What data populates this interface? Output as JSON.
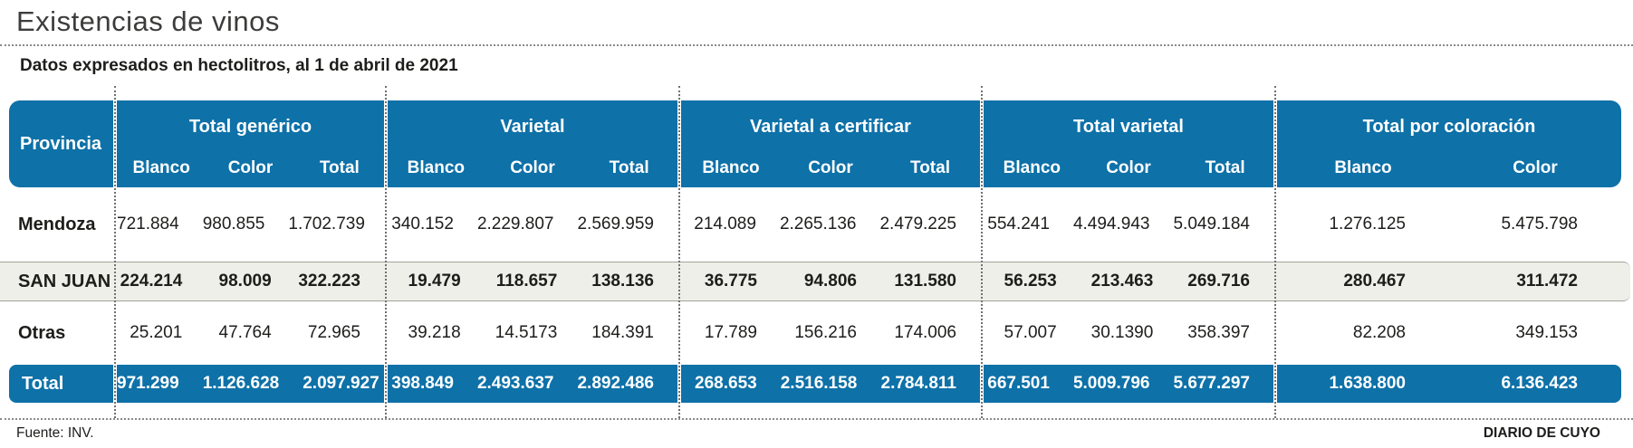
{
  "title": "Existencias de vinos",
  "subtitle": "Datos expresados en hectolitros, al 1 de abril de 2021",
  "footer": {
    "source": "Fuente: INV.",
    "credit": "DIARIO DE CUYO"
  },
  "colors": {
    "header_blue": "#0E71A8",
    "highlight_row_bg": "#EFEFE9",
    "title_gray": "#3C3C3B",
    "dotted_line": "#707070"
  },
  "chart_data": {
    "type": "table",
    "title": "Existencias de vinos",
    "subtitle": "Datos expresados en hectolitros, al 1 de abril de 2021",
    "row_header": "Provincia",
    "column_groups": [
      {
        "label": "Total genérico",
        "columns": [
          "Blanco",
          "Color",
          "Total"
        ]
      },
      {
        "label": "Varietal",
        "columns": [
          "Blanco",
          "Color",
          "Total"
        ]
      },
      {
        "label": "Varietal a certificar",
        "columns": [
          "Blanco",
          "Color",
          "Total"
        ]
      },
      {
        "label": "Total varietal",
        "columns": [
          "Blanco",
          "Color",
          "Total"
        ]
      },
      {
        "label": "Total por coloración",
        "columns": [
          "Blanco",
          "Color"
        ]
      }
    ],
    "rows": [
      {
        "name": "Mendoza",
        "values": [
          "721.884",
          "980.855",
          "1.702.739",
          "340.152",
          "2.229.807",
          "2.569.959",
          "214.089",
          "2.265.136",
          "2.479.225",
          "554.241",
          "4.494.943",
          "5.049.184",
          "1.276.125",
          "5.475.798"
        ]
      },
      {
        "name": "SAN JUAN",
        "values": [
          "224.214",
          "98.009",
          "322.223",
          "19.479",
          "118.657",
          "138.136",
          "36.775",
          "94.806",
          "131.580",
          "56.253",
          "213.463",
          "269.716",
          "280.467",
          "311.472"
        ]
      },
      {
        "name": "Otras",
        "values": [
          "25.201",
          "47.764",
          "72.965",
          "39.218",
          "14.5173",
          "184.391",
          "17.789",
          "156.216",
          "174.006",
          "57.007",
          "30.1390",
          "358.397",
          "82.208",
          "349.153"
        ]
      },
      {
        "name": "Total",
        "values": [
          "971.299",
          "1.126.628",
          "2.097.927",
          "398.849",
          "2.493.637",
          "2.892.486",
          "268.653",
          "2.516.158",
          "2.784.811",
          "667.501",
          "5.009.796",
          "5.677.297",
          "1.638.800",
          "6.136.423"
        ]
      }
    ]
  }
}
